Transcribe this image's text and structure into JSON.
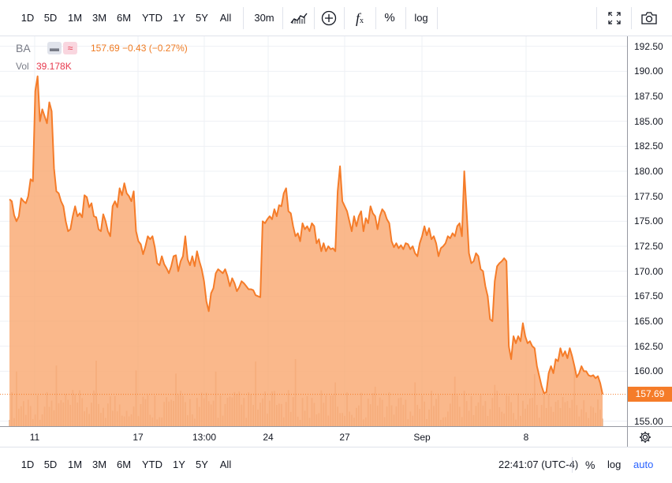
{
  "toolbar": {
    "ranges": [
      "1D",
      "5D",
      "1M",
      "3M",
      "6M",
      "YTD",
      "1Y",
      "5Y",
      "All"
    ],
    "interval": "30m",
    "chart_type_icon": "area-chart-icon",
    "indicator_icon": "plus-circle-icon",
    "function_icon": "fx-icon",
    "percent_label": "%",
    "log_label": "log",
    "fullscreen_icon": "fullscreen-icon",
    "snapshot_icon": "camera-icon"
  },
  "legend": {
    "symbol": "BA",
    "quote": "157.69  −0.43 (−0.27%)",
    "vol_label": "Vol",
    "vol_value": "39.178K",
    "accent": "#ef7b23",
    "vol_color": "#e7394d"
  },
  "price_axis": {
    "labels": [
      "192.50",
      "190.00",
      "187.50",
      "185.00",
      "182.50",
      "180.00",
      "177.50",
      "175.00",
      "172.50",
      "170.00",
      "167.50",
      "165.00",
      "162.50",
      "160.00",
      "155.00"
    ],
    "last_price": "157.69",
    "last_color": "#f57c29"
  },
  "time_axis": {
    "labels": [
      "11",
      "17",
      "13:00",
      "24",
      "27",
      "Sep",
      "8"
    ]
  },
  "bottom_bar": {
    "ranges": [
      "1D",
      "5D",
      "1M",
      "3M",
      "6M",
      "YTD",
      "1Y",
      "5Y",
      "All"
    ],
    "clock": "22:41:07 (UTC-4)",
    "percent_label": "%",
    "log_label": "log",
    "auto_label": "auto",
    "auto_color": "#2962ff"
  },
  "chart_data": {
    "type": "area",
    "symbol": "BA",
    "ylim": [
      154.5,
      193.5
    ],
    "grid": true,
    "line_color": "#f57c29",
    "fill_color": "#f9a872",
    "x_tick_labels": [
      "11",
      "17",
      "13:00",
      "24",
      "27",
      "Sep",
      "8"
    ],
    "price": [
      177.2,
      177.0,
      175.6,
      175.0,
      175.5,
      177.3,
      177.0,
      176.8,
      177.5,
      179.2,
      179.0,
      188.0,
      189.5,
      185.0,
      186.2,
      185.5,
      184.8,
      186.9,
      186.0,
      180.3,
      178.0,
      177.8,
      177.0,
      176.5,
      175.0,
      174.0,
      174.2,
      175.5,
      176.5,
      175.5,
      175.8,
      175.4,
      177.6,
      177.4,
      176.4,
      176.8,
      175.5,
      175.4,
      174.2,
      174.0,
      175.7,
      175.0,
      174.0,
      173.5,
      176.5,
      177.0,
      176.4,
      178.3,
      177.6,
      178.8,
      177.8,
      177.5,
      177.0,
      178.0,
      174.0,
      173.0,
      172.7,
      171.7,
      172.5,
      173.5,
      173.2,
      173.5,
      172.4,
      170.8,
      170.6,
      171.5,
      170.7,
      170.3,
      169.8,
      170.5,
      171.5,
      171.6,
      170.0,
      171.0,
      171.5,
      173.5,
      171.2,
      170.6,
      171.5,
      170.5,
      172.0,
      171.0,
      170.2,
      169.0,
      167.0,
      166.0,
      167.8,
      168.3,
      169.8,
      170.2,
      170.0,
      169.8,
      170.2,
      169.5,
      168.5,
      169.3,
      168.8,
      168.0,
      168.4,
      169.0,
      168.8,
      168.5,
      168.2,
      168.2,
      168.1,
      167.6,
      167.5,
      167.4,
      175.0,
      174.8,
      175.2,
      175.5,
      175.2,
      176.2,
      175.5,
      176.6,
      176.5,
      177.8,
      178.3,
      176.0,
      175.8,
      174.5,
      173.5,
      173.8,
      173.0,
      174.8,
      174.2,
      174.5,
      174.0,
      174.8,
      174.5,
      172.8,
      173.2,
      172.0,
      172.8,
      172.0,
      172.5,
      172.2,
      172.3,
      172.0,
      178.0,
      180.5,
      177.0,
      176.5,
      176.0,
      175.0,
      174.0,
      175.5,
      174.5,
      175.5,
      176.0,
      174.0,
      175.3,
      174.8,
      176.5,
      175.8,
      175.5,
      174.2,
      175.5,
      176.2,
      175.9,
      175.2,
      174.8,
      173.0,
      172.4,
      172.8,
      172.3,
      172.6,
      172.2,
      172.8,
      172.7,
      172.2,
      172.5,
      171.8,
      171.5,
      172.8,
      173.5,
      174.5,
      173.6,
      174.3,
      173.2,
      173.5,
      172.8,
      171.5,
      172.3,
      172.5,
      172.8,
      173.5,
      173.3,
      173.8,
      173.5,
      174.5,
      174.8,
      173.5,
      180.0,
      176.0,
      171.8,
      170.8,
      171.0,
      171.8,
      171.5,
      170.2,
      170.0,
      168.5,
      167.5,
      165.2,
      165.0,
      169.0,
      170.5,
      170.8,
      171.0,
      171.3,
      171.0,
      162.5,
      161.2,
      163.5,
      162.8,
      163.5,
      163.0,
      164.8,
      163.5,
      162.8,
      163.0,
      162.5,
      162.3,
      160.5,
      159.5,
      158.5,
      157.8,
      157.9,
      159.8,
      160.5,
      159.8,
      161.2,
      161.0,
      162.3,
      161.5,
      162.0,
      161.3,
      162.3,
      161.5,
      160.5,
      159.4,
      159.8,
      160.5,
      160.0,
      160.0,
      159.6,
      159.5,
      159.6,
      159.3,
      159.5,
      158.8,
      157.69
    ]
  }
}
